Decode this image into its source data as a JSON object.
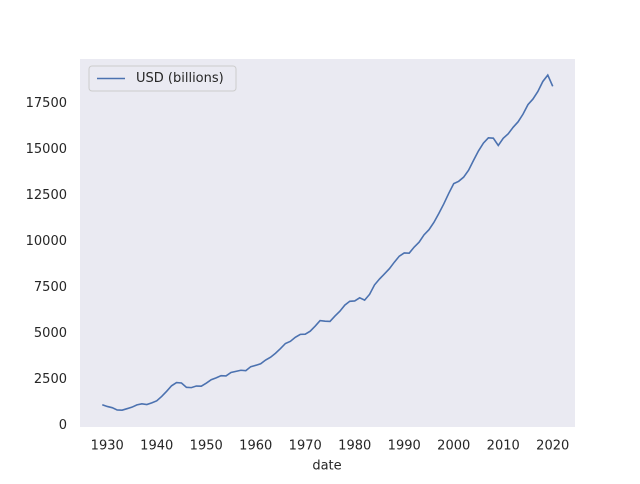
{
  "chart_data": {
    "type": "line",
    "xlabel": "date",
    "x": [
      1929,
      1930,
      1931,
      1932,
      1933,
      1934,
      1935,
      1936,
      1937,
      1938,
      1939,
      1940,
      1941,
      1942,
      1943,
      1944,
      1945,
      1946,
      1947,
      1948,
      1949,
      1950,
      1951,
      1952,
      1953,
      1954,
      1955,
      1956,
      1957,
      1958,
      1959,
      1960,
      1961,
      1962,
      1963,
      1964,
      1965,
      1966,
      1967,
      1968,
      1969,
      1970,
      1971,
      1972,
      1973,
      1974,
      1975,
      1976,
      1977,
      1978,
      1979,
      1980,
      1981,
      1982,
      1983,
      1984,
      1985,
      1986,
      1987,
      1988,
      1989,
      1990,
      1991,
      1992,
      1993,
      1994,
      1995,
      1996,
      1997,
      1998,
      1999,
      2000,
      2001,
      2002,
      2003,
      2004,
      2005,
      2006,
      2007,
      2008,
      2009,
      2010,
      2011,
      2012,
      2013,
      2014,
      2015,
      2016,
      2017,
      2018,
      2019,
      2020
    ],
    "series": [
      {
        "name": "USD (billions)",
        "color": "#4c72b0",
        "values": [
          1120,
          1025,
          959,
          834,
          824,
          904,
          986,
          1112,
          1169,
          1130,
          1220,
          1330,
          1568,
          1848,
          2149,
          2325,
          2301,
          2064,
          2048,
          2134,
          2126,
          2290,
          2475,
          2576,
          2697,
          2682,
          2871,
          2931,
          2992,
          2970,
          3187,
          3260,
          3343,
          3548,
          3702,
          3917,
          4170,
          4447,
          4564,
          4786,
          4942,
          4951,
          5114,
          5387,
          5691,
          5657,
          5645,
          5938,
          6201,
          6534,
          6742,
          6759,
          6930,
          6805,
          7118,
          7632,
          7951,
          8226,
          8511,
          8866,
          9193,
          9366,
          9356,
          9685,
          9952,
          10352,
          10630,
          11031,
          11521,
          12038,
          12610,
          13138,
          13263,
          13488,
          13866,
          14399,
          14913,
          15338,
          15626,
          15605,
          15209,
          15599,
          15841,
          16197,
          16495,
          16912,
          17432,
          17731,
          18144,
          18688,
          19036,
          18423
        ]
      }
    ],
    "xlim": [
      1924.5,
      2024.5
    ],
    "xticks": [
      1930,
      1940,
      1950,
      1960,
      1970,
      1980,
      1990,
      2000,
      2010,
      2020
    ],
    "ylim": [
      -92,
      19910
    ],
    "yticks": [
      0,
      2500,
      5000,
      7500,
      10000,
      12500,
      15000,
      17500
    ],
    "grid": false,
    "legend": "upper left"
  }
}
